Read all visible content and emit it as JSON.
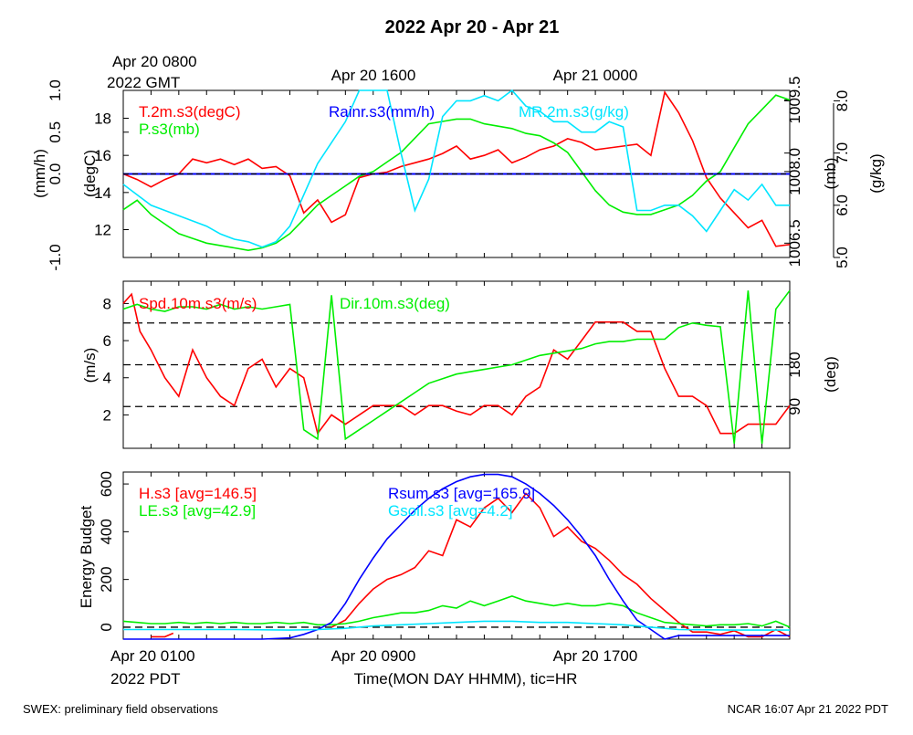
{
  "title": "2022 Apr 20 - Apr 21",
  "top_time_labels": {
    "start_line1": "Apr 20 0800",
    "start_line2": "2022 GMT",
    "mid": "Apr 20 1600",
    "end": "Apr 21 0000"
  },
  "bottom_time_labels": {
    "start_line1": "Apr 20 0100",
    "start_line2": "2022 PDT",
    "mid": "Apr 20 0900",
    "end": "Apr 20 1700"
  },
  "xlabel": "Time(MON DAY HHMM), tic=HR",
  "footer_left": "SWEX: preliminary field observations",
  "footer_right": "NCAR 16:07 Apr 21 2022 PDT",
  "colors": {
    "red": "#ff0000",
    "green": "#00ee00",
    "blue": "#0000ff",
    "cyan": "#00e5ff",
    "black": "#000000"
  },
  "chart_data": [
    {
      "type": "line",
      "panel": "meteorology",
      "x_unit": "hours since Apr 20 0100 PDT",
      "xlim": [
        0,
        24
      ],
      "legend": [
        "T.2m.s3(degC)",
        "P.s3(mb)",
        "Rainr.s3(mm/h)",
        "MR.2m.s3(g/kg)"
      ],
      "axes": [
        {
          "label": "(mm/h)",
          "ylim": [
            -1.0,
            1.0
          ],
          "ticks": [
            "-1.0",
            "0.0",
            "0.5",
            "1.0"
          ],
          "side": "left-outer"
        },
        {
          "label": "(degC)",
          "ylim": [
            10.5,
            19.5
          ],
          "ticks": [
            "12",
            "14",
            "16",
            "18"
          ],
          "side": "left-inner"
        },
        {
          "label": "(mb)",
          "ylim": [
            1006.2,
            1009.7
          ],
          "ticks": [
            "1006.5",
            "1008.0",
            "1009.5"
          ],
          "side": "right-inner"
        },
        {
          "label": "(g/kg)",
          "ylim": [
            5.0,
            8.2
          ],
          "ticks": [
            "5.0",
            "6.0",
            "7.0",
            "8.0"
          ],
          "side": "right-outer"
        }
      ],
      "series": [
        {
          "name": "T.2m.s3(degC)",
          "color": "red",
          "axis": 1,
          "x": [
            0,
            0.5,
            1,
            1.5,
            2,
            2.5,
            3,
            3.5,
            4,
            4.5,
            5,
            5.5,
            6,
            6.5,
            7,
            7.5,
            8,
            8.5,
            9,
            9.5,
            10,
            10.5,
            11,
            11.5,
            12,
            12.5,
            13,
            13.5,
            14,
            14.5,
            15,
            15.5,
            16,
            16.5,
            17,
            17.5,
            18,
            18.5,
            19,
            19.5,
            20,
            20.5,
            21,
            21.5,
            22,
            22.5,
            23,
            23.5,
            24
          ],
          "values": [
            15.0,
            14.7,
            14.3,
            14.7,
            15.0,
            15.8,
            15.6,
            15.8,
            15.5,
            15.8,
            15.3,
            15.4,
            14.9,
            12.9,
            13.6,
            12.4,
            12.8,
            14.8,
            15.0,
            15.1,
            15.4,
            15.6,
            15.8,
            16.1,
            16.5,
            15.8,
            16.0,
            16.3,
            15.6,
            15.9,
            16.3,
            16.5,
            16.9,
            16.7,
            16.3,
            16.4,
            16.5,
            16.6,
            16.0,
            19.4,
            18.3,
            16.8,
            14.8,
            13.7,
            12.9,
            12.1,
            12.5,
            11.1,
            11.2
          ]
        },
        {
          "name": "P.s3(mb)",
          "color": "green",
          "axis": 2,
          "x": [
            0,
            0.5,
            1,
            1.5,
            2,
            2.5,
            3,
            3.5,
            4,
            4.5,
            5,
            5.5,
            6,
            6.5,
            7,
            7.5,
            8,
            8.5,
            9,
            9.5,
            10,
            10.5,
            11,
            11.5,
            12,
            12.5,
            13,
            13.5,
            14,
            14.5,
            15,
            15.5,
            16,
            16.5,
            17,
            17.5,
            18,
            18.5,
            19,
            19.5,
            20,
            20.5,
            21,
            21.5,
            22,
            22.5,
            23,
            23.5,
            24
          ],
          "values": [
            1007.2,
            1007.4,
            1007.1,
            1006.9,
            1006.7,
            1006.6,
            1006.5,
            1006.45,
            1006.4,
            1006.35,
            1006.4,
            1006.5,
            1006.7,
            1007.0,
            1007.3,
            1007.5,
            1007.7,
            1007.9,
            1008.0,
            1008.2,
            1008.4,
            1008.7,
            1009.0,
            1009.05,
            1009.1,
            1009.1,
            1009.0,
            1008.95,
            1008.9,
            1008.8,
            1008.75,
            1008.6,
            1008.4,
            1008.0,
            1007.6,
            1007.3,
            1007.15,
            1007.1,
            1007.1,
            1007.2,
            1007.3,
            1007.5,
            1007.8,
            1008.0,
            1008.5,
            1009.0,
            1009.3,
            1009.6,
            1009.5
          ]
        },
        {
          "name": "Rainr.s3(mm/h)",
          "color": "blue",
          "axis": 0,
          "x": [
            0,
            24
          ],
          "values": [
            0.0,
            0.0
          ]
        },
        {
          "name": "MR.2m.s3(g/kg)",
          "color": "cyan",
          "axis": 3,
          "x": [
            0,
            0.5,
            1,
            1.5,
            2,
            2.5,
            3,
            3.5,
            4,
            4.5,
            5,
            5.5,
            6,
            6.5,
            7,
            7.5,
            8,
            8.5,
            9,
            9.5,
            10,
            10.5,
            11,
            11.5,
            12,
            12.5,
            13,
            13.5,
            14,
            14.5,
            15,
            15.5,
            16,
            16.5,
            17,
            17.5,
            18,
            18.5,
            19,
            19.5,
            20,
            20.5,
            21,
            21.5,
            22,
            22.5,
            23,
            23.5,
            24
          ],
          "values": [
            6.4,
            6.2,
            6.0,
            5.9,
            5.8,
            5.7,
            5.6,
            5.45,
            5.35,
            5.3,
            5.2,
            5.3,
            5.6,
            6.2,
            6.8,
            7.2,
            7.6,
            8.3,
            8.5,
            8.2,
            7.0,
            5.9,
            6.5,
            7.7,
            8.0,
            8.0,
            8.1,
            8.0,
            8.2,
            7.9,
            7.8,
            7.6,
            7.6,
            7.4,
            7.4,
            7.6,
            7.5,
            5.9,
            5.9,
            6.0,
            6.0,
            5.8,
            5.5,
            5.9,
            6.3,
            6.1,
            6.4,
            6.0,
            6.0
          ]
        }
      ]
    },
    {
      "type": "line",
      "panel": "wind",
      "x_unit": "hours since Apr 20 0100 PDT",
      "xlim": [
        0,
        24
      ],
      "legend": [
        "Spd.10m.s3(m/s)",
        "Dir.10m.s3(deg)"
      ],
      "axes": [
        {
          "label": "(m/s)",
          "ylim": [
            0.2,
            9.2
          ],
          "ticks": [
            "2",
            "4",
            "6",
            "8"
          ],
          "side": "left"
        },
        {
          "label": "(deg)",
          "ylim": [
            0,
            360
          ],
          "ticks": [
            "90",
            "180"
          ],
          "side": "right"
        }
      ],
      "reference_lines": [
        90,
        180,
        270
      ],
      "series": [
        {
          "name": "Spd.10m.s3(m/s)",
          "color": "red",
          "axis": 0,
          "x": [
            0,
            0.3,
            0.6,
            1,
            1.5,
            2,
            2.5,
            3,
            3.5,
            4,
            4.5,
            5,
            5.5,
            6,
            6.5,
            7,
            7.5,
            8,
            8.5,
            9,
            9.5,
            10,
            10.5,
            11,
            11.5,
            12,
            12.5,
            13,
            13.5,
            14,
            14.5,
            15,
            15.5,
            16,
            16.5,
            17,
            17.5,
            18,
            18.5,
            19,
            19.5,
            20,
            20.5,
            21,
            21.5,
            22,
            22.5,
            23,
            23.5,
            24
          ],
          "values": [
            8.0,
            8.5,
            6.5,
            5.5,
            4.0,
            3.0,
            5.5,
            4.0,
            3.0,
            2.5,
            4.5,
            5.0,
            3.5,
            4.5,
            4.0,
            1.0,
            2.0,
            1.5,
            2.0,
            2.5,
            2.5,
            2.5,
            2.0,
            2.5,
            2.5,
            2.2,
            2.0,
            2.5,
            2.5,
            2.0,
            3.0,
            3.5,
            5.5,
            5.0,
            6.0,
            7.0,
            7.0,
            7.0,
            6.5,
            6.5,
            4.5,
            3.0,
            3.0,
            2.5,
            1.0,
            1.0,
            1.5,
            1.5,
            1.5,
            2.5
          ]
        },
        {
          "name": "Dir.10m.s3(deg)",
          "color": "green",
          "axis": 1,
          "x": [
            0,
            0.5,
            1,
            1.5,
            2,
            2.5,
            3,
            3.5,
            4,
            4.5,
            5,
            5.5,
            6,
            6.5,
            7,
            7.5,
            8,
            8.5,
            9,
            9.5,
            10,
            10.5,
            11,
            11.5,
            12,
            12.5,
            13,
            13.5,
            14,
            14.5,
            15,
            15.5,
            16,
            16.5,
            17,
            17.5,
            18,
            18.5,
            19,
            19.5,
            20,
            20.5,
            21,
            21.5,
            22,
            22.5,
            23,
            23.5,
            24
          ],
          "values": [
            300,
            310,
            300,
            295,
            305,
            305,
            300,
            310,
            300,
            305,
            300,
            305,
            310,
            40,
            20,
            330,
            20,
            40,
            60,
            80,
            100,
            120,
            140,
            150,
            160,
            165,
            170,
            175,
            180,
            190,
            200,
            205,
            210,
            215,
            225,
            230,
            230,
            235,
            235,
            235,
            260,
            270,
            265,
            262,
            10,
            340,
            10,
            300,
            340
          ]
        }
      ]
    },
    {
      "type": "line",
      "panel": "energy",
      "x_unit": "hours since Apr 20 0100 PDT",
      "xlim": [
        0,
        24
      ],
      "ylabel": "Energy Budget",
      "ylim": [
        -50,
        650
      ],
      "yticks": [
        0,
        200,
        400,
        600
      ],
      "reference_lines": [
        0
      ],
      "legend": [
        "H.s3 [avg=146.5]",
        "LE.s3 [avg=42.9]",
        "Rsum.s3 [avg=165.9]",
        "Gsoil.s3 [avg=4.2]"
      ],
      "series": [
        {
          "name": "H.s3 [avg=146.5]",
          "color": "red",
          "segments": [
            {
              "x": [
                1.0,
                1.5,
                1.8
              ],
              "values": [
                -40,
                -40,
                -25
              ]
            },
            {
              "x": [
                7.5,
                8,
                8.5,
                9,
                9.5,
                10,
                10.5,
                11,
                11.5,
                12,
                12.5,
                13,
                13.5,
                14,
                14.5,
                15,
                15.5,
                16,
                16.5,
                17,
                17.5,
                18,
                18.5,
                19,
                19.5,
                20,
                20.5,
                21,
                21.5,
                22,
                22.5,
                23,
                23.5,
                24
              ],
              "values": [
                0,
                30,
                100,
                160,
                200,
                220,
                250,
                320,
                300,
                450,
                420,
                500,
                540,
                480,
                560,
                500,
                380,
                420,
                360,
                330,
                280,
                220,
                180,
                120,
                70,
                20,
                -20,
                -20,
                -30,
                -15,
                -40,
                -40,
                -10,
                -40
              ]
            }
          ]
        },
        {
          "name": "LE.s3 [avg=42.9]",
          "color": "green",
          "x": [
            0,
            0.5,
            1,
            1.5,
            2,
            2.5,
            3,
            3.5,
            4,
            4.5,
            5,
            5.5,
            6,
            6.5,
            7,
            7.5,
            8,
            8.5,
            9,
            9.5,
            10,
            10.5,
            11,
            11.5,
            12,
            12.5,
            13,
            13.5,
            14,
            14.5,
            15,
            15.5,
            16,
            16.5,
            17,
            17.5,
            18,
            18.5,
            19,
            19.5,
            20,
            20.5,
            21,
            21.5,
            22,
            22.5,
            23,
            23.5,
            24
          ],
          "values": [
            25,
            20,
            15,
            15,
            20,
            15,
            20,
            15,
            20,
            15,
            15,
            20,
            15,
            20,
            10,
            10,
            15,
            25,
            40,
            50,
            60,
            60,
            70,
            90,
            80,
            110,
            90,
            110,
            130,
            110,
            100,
            90,
            100,
            90,
            90,
            100,
            90,
            60,
            40,
            20,
            15,
            10,
            5,
            10,
            10,
            15,
            5,
            25,
            0
          ]
        },
        {
          "name": "Rsum.s3 [avg=165.9]",
          "color": "blue",
          "x": [
            0,
            1,
            2,
            3,
            4,
            5,
            6,
            6.5,
            7,
            7.5,
            8,
            8.5,
            9,
            9.5,
            10,
            10.5,
            11,
            11.5,
            12,
            12.5,
            13,
            13.5,
            14,
            14.5,
            15,
            15.5,
            16,
            16.5,
            17,
            17.5,
            18,
            18.5,
            19,
            19.5,
            20,
            21,
            22,
            23,
            24
          ],
          "values": [
            -55,
            -55,
            -55,
            -55,
            -55,
            -55,
            -45,
            -30,
            -10,
            20,
            100,
            200,
            290,
            370,
            430,
            490,
            540,
            580,
            610,
            630,
            640,
            640,
            630,
            600,
            560,
            510,
            450,
            380,
            300,
            200,
            110,
            30,
            -10,
            -50,
            -35,
            -35,
            -35,
            -35,
            -35
          ]
        },
        {
          "name": "Gsoil.s3 [avg=4.2]",
          "color": "cyan",
          "x": [
            0,
            2,
            4,
            6,
            7,
            8,
            9,
            10,
            11,
            12,
            13,
            14,
            15,
            16,
            17,
            18,
            19,
            20,
            22,
            24
          ],
          "values": [
            -10,
            -10,
            -10,
            -12,
            -10,
            -5,
            5,
            10,
            15,
            20,
            25,
            25,
            20,
            20,
            15,
            10,
            0,
            -10,
            -12,
            -12
          ]
        }
      ]
    }
  ]
}
